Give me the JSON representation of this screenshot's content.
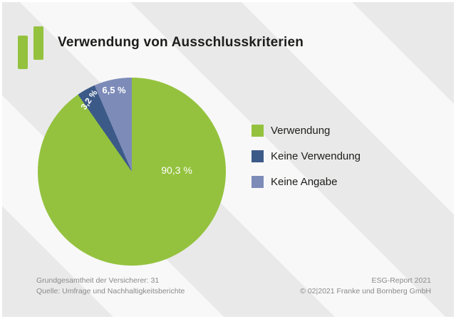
{
  "title": "Verwendung von Ausschlusskriterien",
  "chart_data": {
    "type": "pie",
    "labels": [
      "Verwendung",
      "Keine Verwendung",
      "Keine Angabe"
    ],
    "values": [
      90.3,
      3.2,
      6.5
    ],
    "value_labels": [
      "90,3 %",
      "3,2 %",
      "6,5 %"
    ],
    "colors": [
      "#94c23e",
      "#3c5a88",
      "#7d8bb8"
    ],
    "title": "Verwendung von Ausschlusskriterien",
    "legend_position": "right",
    "start_angle_deg": 0,
    "direction": "clockwise"
  },
  "footer": {
    "left_line1": "Grundgesamtheit der Versicherer: 31",
    "left_line2": "Quelle: Umfrage und Nachhaltigkeitsberichte",
    "right_line1": "ESG-Report 2021",
    "right_line2": "© 02|2021 Franke und Bornberg GmbH"
  }
}
